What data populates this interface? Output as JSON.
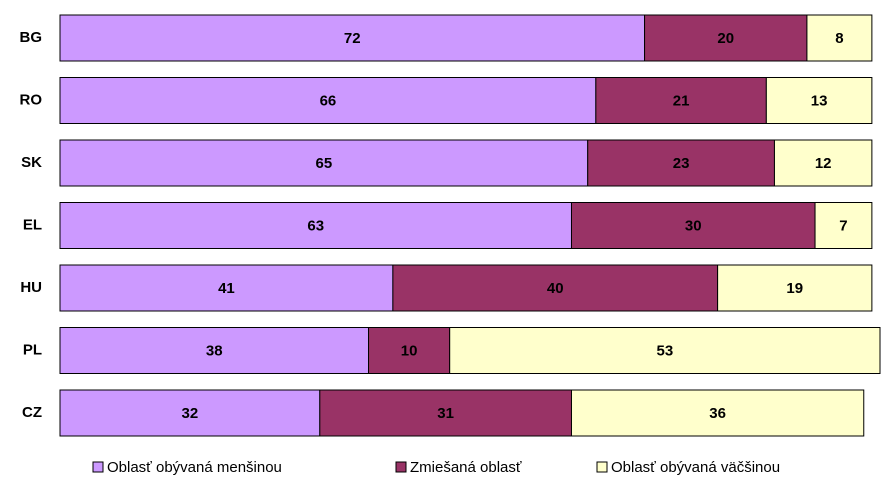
{
  "chart_data": {
    "type": "stacked-bar-horizontal",
    "categories": [
      "BG",
      "RO",
      "SK",
      "EL",
      "HU",
      "PL",
      "CZ"
    ],
    "series": [
      {
        "name": "Oblasť obývaná menšinou",
        "color": "#cc99ff",
        "values": [
          72,
          66,
          65,
          63,
          41,
          38,
          32
        ]
      },
      {
        "name": "Zmiešaná oblasť",
        "color": "#993366",
        "values": [
          20,
          21,
          23,
          30,
          40,
          10,
          31
        ]
      },
      {
        "name": "Oblasť obývaná väčšinou",
        "color": "#ffffcc",
        "values": [
          8,
          13,
          12,
          7,
          19,
          53,
          36
        ]
      }
    ],
    "xlim": [
      0,
      101
    ],
    "legend": "bottom"
  }
}
